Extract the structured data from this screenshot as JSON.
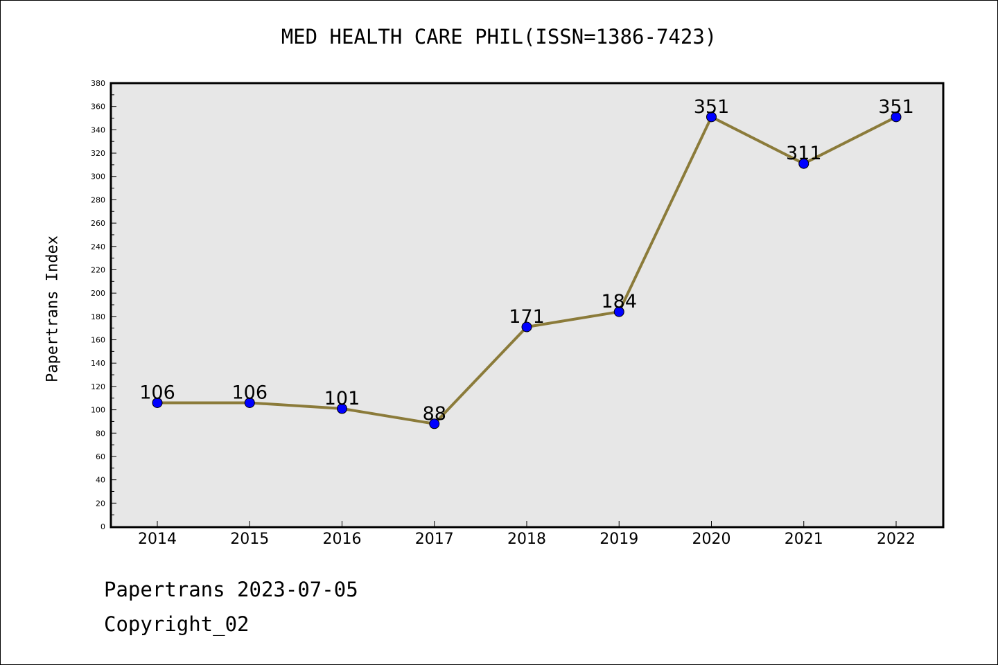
{
  "chart_data": {
    "type": "line",
    "title": "MED HEALTH CARE PHIL(ISSN=1386-7423)",
    "ylabel": "Papertrans Index",
    "xlabel": "",
    "categories": [
      "2014",
      "2015",
      "2016",
      "2017",
      "2018",
      "2019",
      "2020",
      "2021",
      "2022"
    ],
    "series": [
      {
        "values": [
          106,
          106,
          101,
          88,
          171,
          184,
          351,
          311,
          351
        ]
      }
    ],
    "data_labels": [
      "106",
      "106",
      "101",
      "88",
      "171",
      "184",
      "351",
      "311",
      "351"
    ],
    "ylim": [
      0,
      380
    ],
    "yticks": [
      "0",
      "20",
      "40",
      "60",
      "80",
      "100",
      "120",
      "140",
      "160",
      "180",
      "200",
      "220",
      "240",
      "260",
      "280",
      "300",
      "320",
      "340",
      "360",
      "380"
    ],
    "ytick_values": [
      0,
      20,
      40,
      60,
      80,
      100,
      120,
      140,
      160,
      180,
      200,
      220,
      240,
      260,
      280,
      300,
      320,
      340,
      360,
      380
    ],
    "grid": false,
    "legend": "none",
    "colors": {
      "line": "#8B7B3A",
      "marker": "#0000FF",
      "plot_background": "#E7E7E7"
    }
  },
  "footer": {
    "date_line": "Papertrans 2023-07-05",
    "copyright_line": "Copyright_02"
  }
}
